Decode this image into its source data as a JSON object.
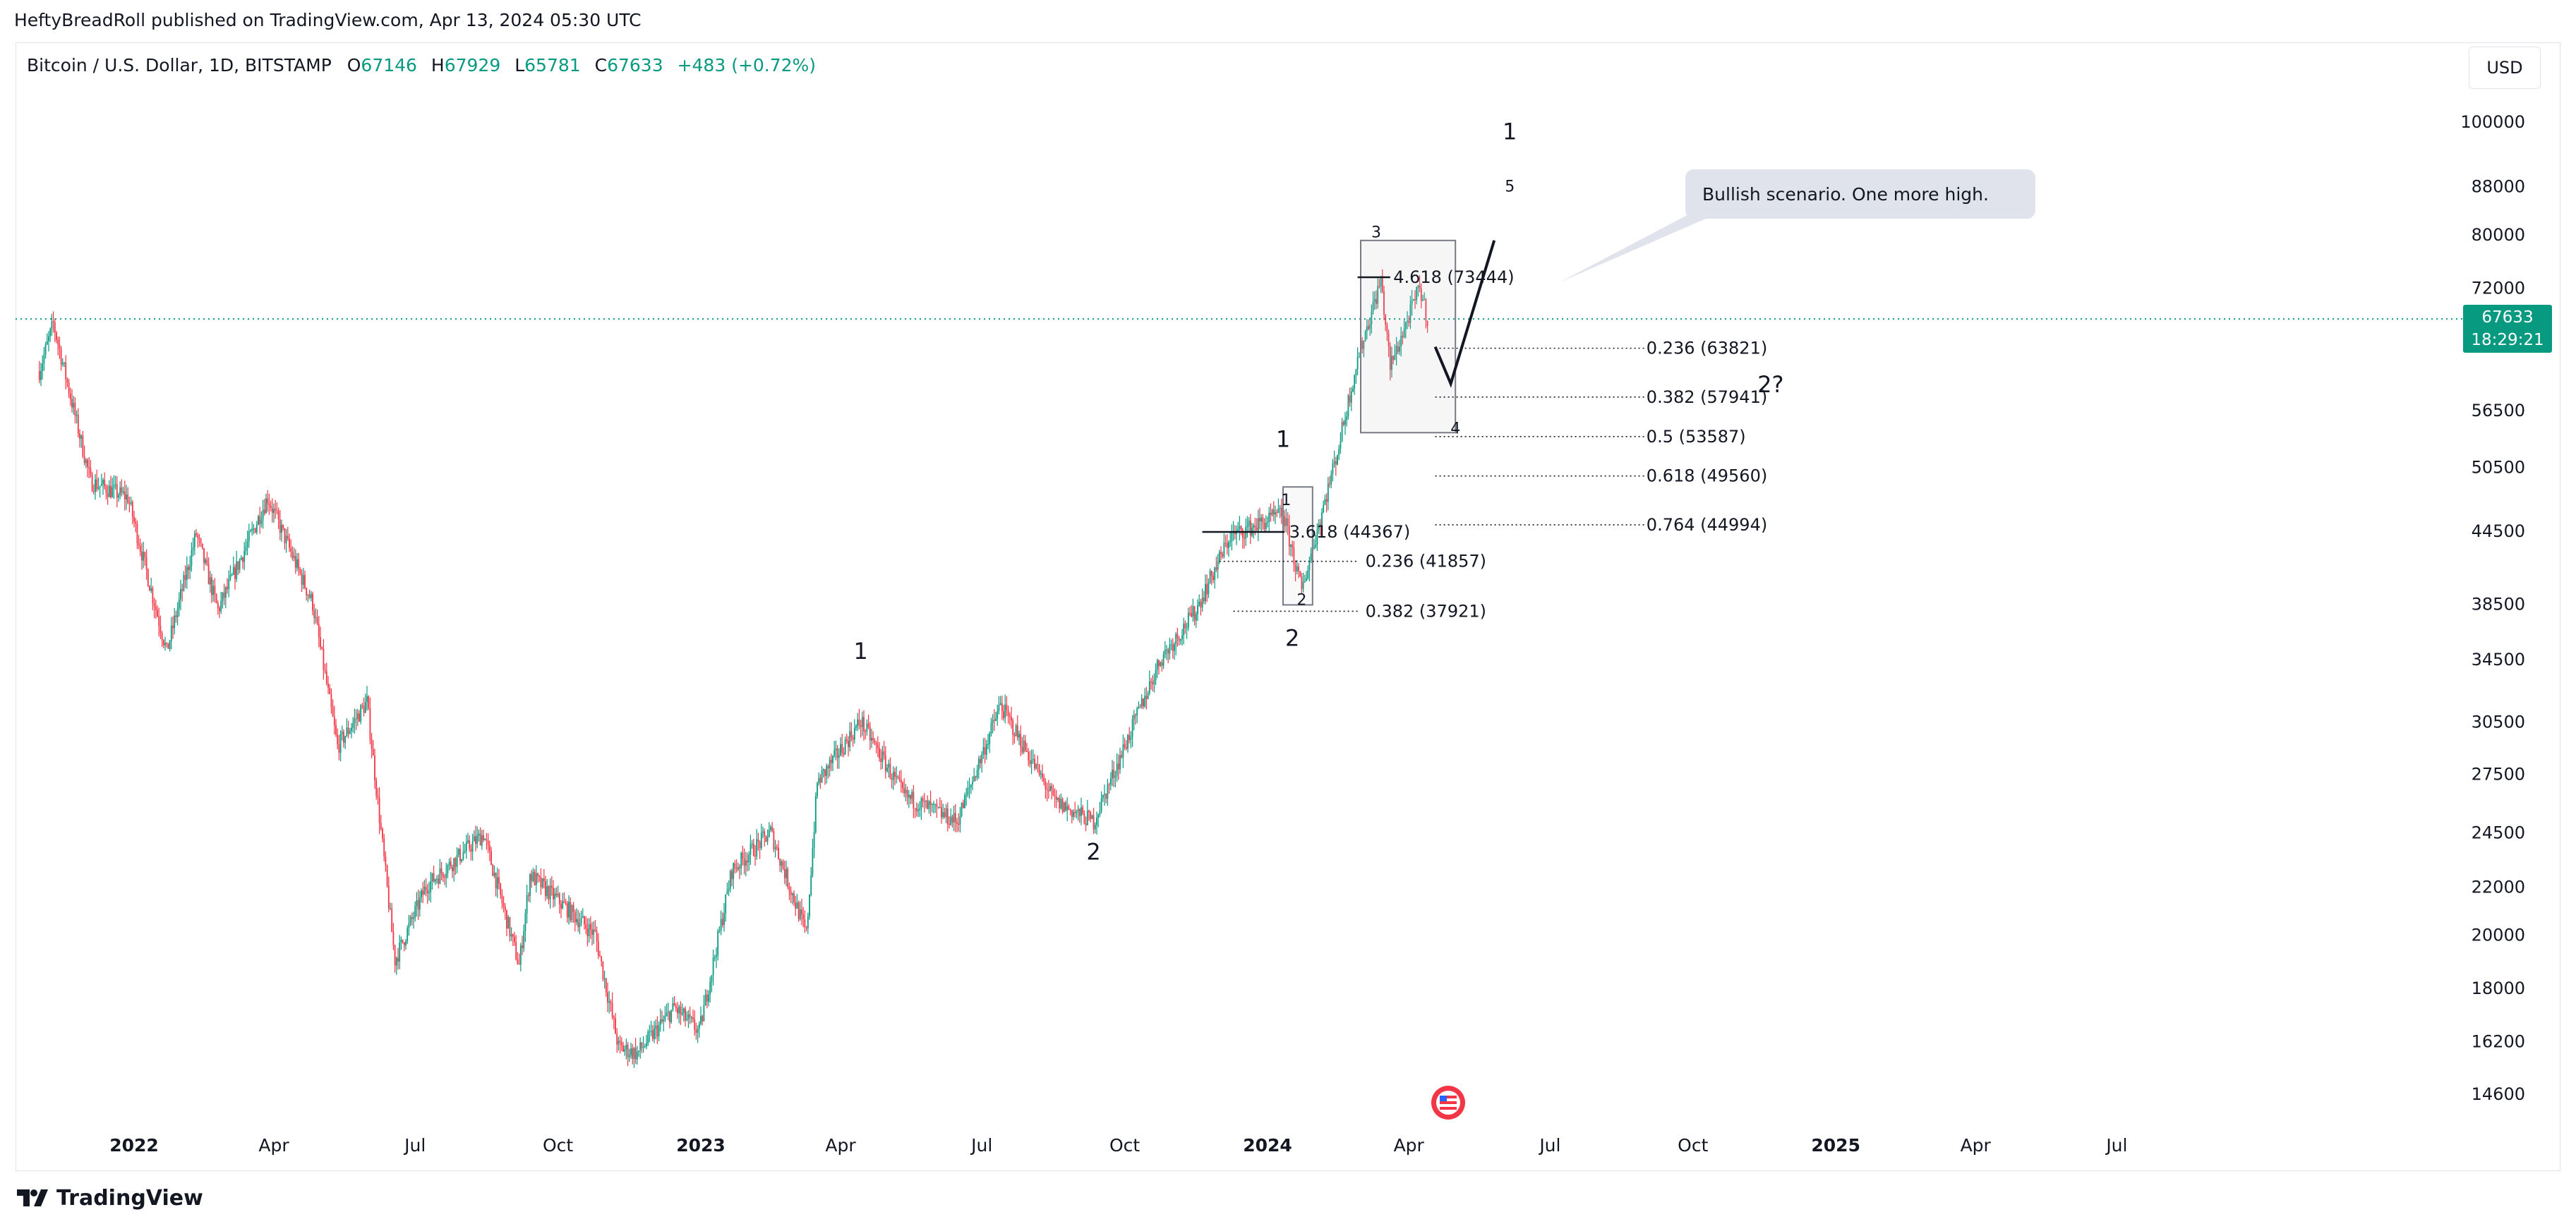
{
  "publisher_line": "HeftyBreadRoll published on TradingView.com, Apr 13, 2024 05:30 UTC",
  "symbol_line": "Bitcoin / U.S. Dollar, 1D, BITSTAMP",
  "ohlc": {
    "o_label": "O",
    "o": "67146",
    "h_label": "H",
    "h": "67929",
    "l_label": "L",
    "l": "65781",
    "c_label": "C",
    "c": "67633",
    "change": "+483 (+0.72%)"
  },
  "currency_button": "USD",
  "brand": "TradingView",
  "last_price": {
    "value": "67633",
    "countdown": "18:29:21"
  },
  "colors": {
    "up": "#089981",
    "down": "#f23645",
    "last_line": "#089981",
    "annotation_box": "#e0e3eb"
  },
  "chart_data": {
    "type": "candlestick",
    "title": "",
    "y_scale": "log",
    "y_ticks": [
      100000,
      88000,
      80000,
      72000,
      56500,
      50500,
      44500,
      38500,
      34500,
      30500,
      27500,
      24500,
      22000,
      20000,
      18000,
      16200,
      14600
    ],
    "x_ticks": [
      "2022",
      "Apr",
      "Jul",
      "Oct",
      "2023",
      "Apr",
      "Jul",
      "Oct",
      "2024",
      "Apr",
      "Jul",
      "Oct",
      "2025",
      "Apr",
      "Jul"
    ],
    "last_close": 67633,
    "price_path": {
      "dates": [
        "2021-11-01",
        "2021-11-10",
        "2021-12-04",
        "2021-12-28",
        "2022-01-22",
        "2022-02-10",
        "2022-02-24",
        "2022-03-28",
        "2022-04-26",
        "2022-05-12",
        "2022-05-31",
        "2022-06-18",
        "2022-07-08",
        "2022-08-14",
        "2022-09-06",
        "2022-09-13",
        "2022-10-25",
        "2022-11-09",
        "2022-11-21",
        "2022-12-15",
        "2022-12-31",
        "2023-01-21",
        "2023-02-15",
        "2023-03-10",
        "2023-03-17",
        "2023-04-14",
        "2023-05-12",
        "2023-06-15",
        "2023-07-13",
        "2023-08-17",
        "2023-09-11",
        "2023-10-24",
        "2023-11-15",
        "2023-12-08",
        "2024-01-11",
        "2024-01-23",
        "2024-02-15",
        "2024-02-28",
        "2024-03-14",
        "2024-03-20",
        "2024-04-08",
        "2024-04-13"
      ],
      "values": [
        61000,
        67000,
        49000,
        47500,
        35000,
        44200,
        38000,
        47500,
        38500,
        29000,
        31700,
        19000,
        22000,
        24400,
        18800,
        22500,
        20000,
        16000,
        15800,
        17300,
        16500,
        22700,
        24500,
        20000,
        27000,
        30500,
        26300,
        25000,
        31500,
        26000,
        25000,
        34500,
        37800,
        44000,
        46000,
        39500,
        52000,
        62500,
        73000,
        61500,
        72000,
        67633
      ]
    },
    "elliott_labels": [
      {
        "text": "1",
        "date": "2023-04-14",
        "price": 34500
      },
      {
        "text": "2",
        "date": "2023-09-11",
        "price": 23200
      },
      {
        "text": "1",
        "date": "2024-01-11",
        "price": 52500
      },
      {
        "text": "1",
        "date": "2024-01-13",
        "price": 46800
      },
      {
        "text": "2",
        "date": "2024-01-23",
        "price": 38400
      },
      {
        "text": "2",
        "date": "2024-01-17",
        "price": 35400
      },
      {
        "text": "3",
        "date": "2024-03-11",
        "price": 79500
      },
      {
        "text": "4",
        "date": "2024-05-01",
        "price": 53900
      },
      {
        "text": "1",
        "date": "2024-06-05",
        "price": 96500
      },
      {
        "text": "5",
        "date": "2024-06-05",
        "price": 87000
      },
      {
        "text": "2?",
        "date": "2024-11-20",
        "price": 58500
      }
    ],
    "fib_levels": [
      {
        "label": "4.618 (73444)",
        "price": 73444
      },
      {
        "label": "0.236 (63821)",
        "price": 63821
      },
      {
        "label": "0.382 (57941)",
        "price": 57941
      },
      {
        "label": "0.5 (53587)",
        "price": 53587
      },
      {
        "label": "0.618 (49560)",
        "price": 49560
      },
      {
        "label": "0.764 (44994)",
        "price": 44994
      },
      {
        "label": "3.618 (44367)",
        "price": 44367
      },
      {
        "label": "0.236 (41857)",
        "price": 41857
      },
      {
        "label": "0.382 (37921)",
        "price": 37921
      }
    ],
    "projection": {
      "dates": [
        "2024-04-18",
        "2024-04-28",
        "2024-05-26"
      ],
      "values": [
        64000,
        59500,
        79000
      ]
    },
    "callout": "Bullish scenario. One more high."
  }
}
